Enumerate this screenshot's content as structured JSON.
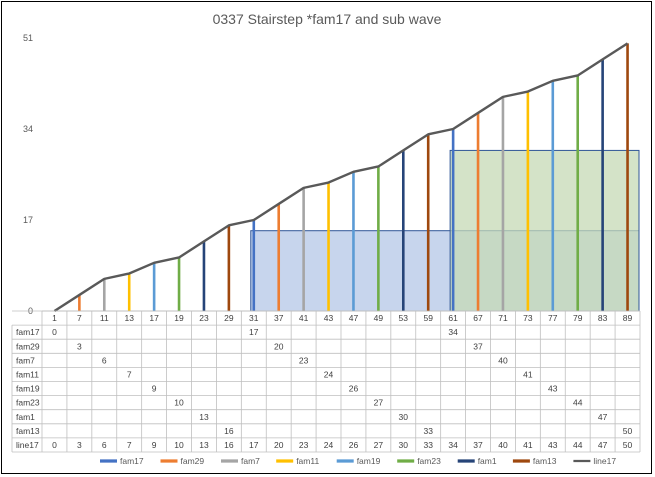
{
  "chart_data": {
    "type": "bar",
    "title": "0337 Stairstep *fam17 and sub wave",
    "ylim": [
      0,
      51
    ],
    "yticks": [
      0,
      17,
      34,
      51
    ],
    "grid": false,
    "legend_position": "bottom",
    "categories": [
      "1",
      "7",
      "11",
      "13",
      "17",
      "19",
      "23",
      "29",
      "31",
      "37",
      "41",
      "43",
      "47",
      "49",
      "53",
      "59",
      "61",
      "67",
      "71",
      "73",
      "77",
      "79",
      "83",
      "89"
    ],
    "series": [
      {
        "name": "fam17",
        "color": "#4472C4",
        "values": [
          0,
          null,
          null,
          null,
          null,
          null,
          null,
          null,
          17,
          null,
          null,
          null,
          null,
          null,
          null,
          null,
          34,
          null,
          null,
          null,
          null,
          null,
          null,
          null
        ]
      },
      {
        "name": "fam29",
        "color": "#ED7D31",
        "values": [
          null,
          3,
          null,
          null,
          null,
          null,
          null,
          null,
          null,
          20,
          null,
          null,
          null,
          null,
          null,
          null,
          null,
          37,
          null,
          null,
          null,
          null,
          null,
          null
        ]
      },
      {
        "name": "fam7",
        "color": "#A5A5A5",
        "values": [
          null,
          null,
          6,
          null,
          null,
          null,
          null,
          null,
          null,
          null,
          23,
          null,
          null,
          null,
          null,
          null,
          null,
          null,
          40,
          null,
          null,
          null,
          null,
          null
        ]
      },
      {
        "name": "fam11",
        "color": "#FFC000",
        "values": [
          null,
          null,
          null,
          7,
          null,
          null,
          null,
          null,
          null,
          null,
          null,
          24,
          null,
          null,
          null,
          null,
          null,
          null,
          null,
          41,
          null,
          null,
          null,
          null
        ]
      },
      {
        "name": "fam19",
        "color": "#5B9BD5",
        "values": [
          null,
          null,
          null,
          null,
          9,
          null,
          null,
          null,
          null,
          null,
          null,
          null,
          26,
          null,
          null,
          null,
          null,
          null,
          null,
          null,
          43,
          null,
          null,
          null
        ]
      },
      {
        "name": "fam23",
        "color": "#70AD47",
        "values": [
          null,
          null,
          null,
          null,
          null,
          10,
          null,
          null,
          null,
          null,
          null,
          null,
          null,
          27,
          null,
          null,
          null,
          null,
          null,
          null,
          null,
          44,
          null,
          null
        ]
      },
      {
        "name": "fam1",
        "color": "#264478",
        "values": [
          null,
          null,
          null,
          null,
          null,
          null,
          13,
          null,
          null,
          null,
          null,
          null,
          null,
          null,
          30,
          null,
          null,
          null,
          null,
          null,
          null,
          null,
          47,
          null
        ]
      },
      {
        "name": "fam13",
        "color": "#9E480E",
        "values": [
          null,
          null,
          null,
          null,
          null,
          null,
          null,
          16,
          null,
          null,
          null,
          null,
          null,
          null,
          null,
          33,
          null,
          null,
          null,
          null,
          null,
          null,
          null,
          50
        ]
      }
    ],
    "line": {
      "name": "line17",
      "color": "#595959",
      "values": [
        0,
        3,
        6,
        7,
        9,
        10,
        13,
        16,
        17,
        20,
        23,
        24,
        26,
        27,
        30,
        33,
        34,
        37,
        40,
        41,
        43,
        44,
        47,
        50
      ]
    },
    "areas": [
      {
        "color": "#B4C7E7",
        "x_from": "31",
        "x_to": "89",
        "y": 15
      },
      {
        "color": "#C5D9B5",
        "x_from": "61",
        "x_to": "89",
        "y": 30
      }
    ]
  }
}
